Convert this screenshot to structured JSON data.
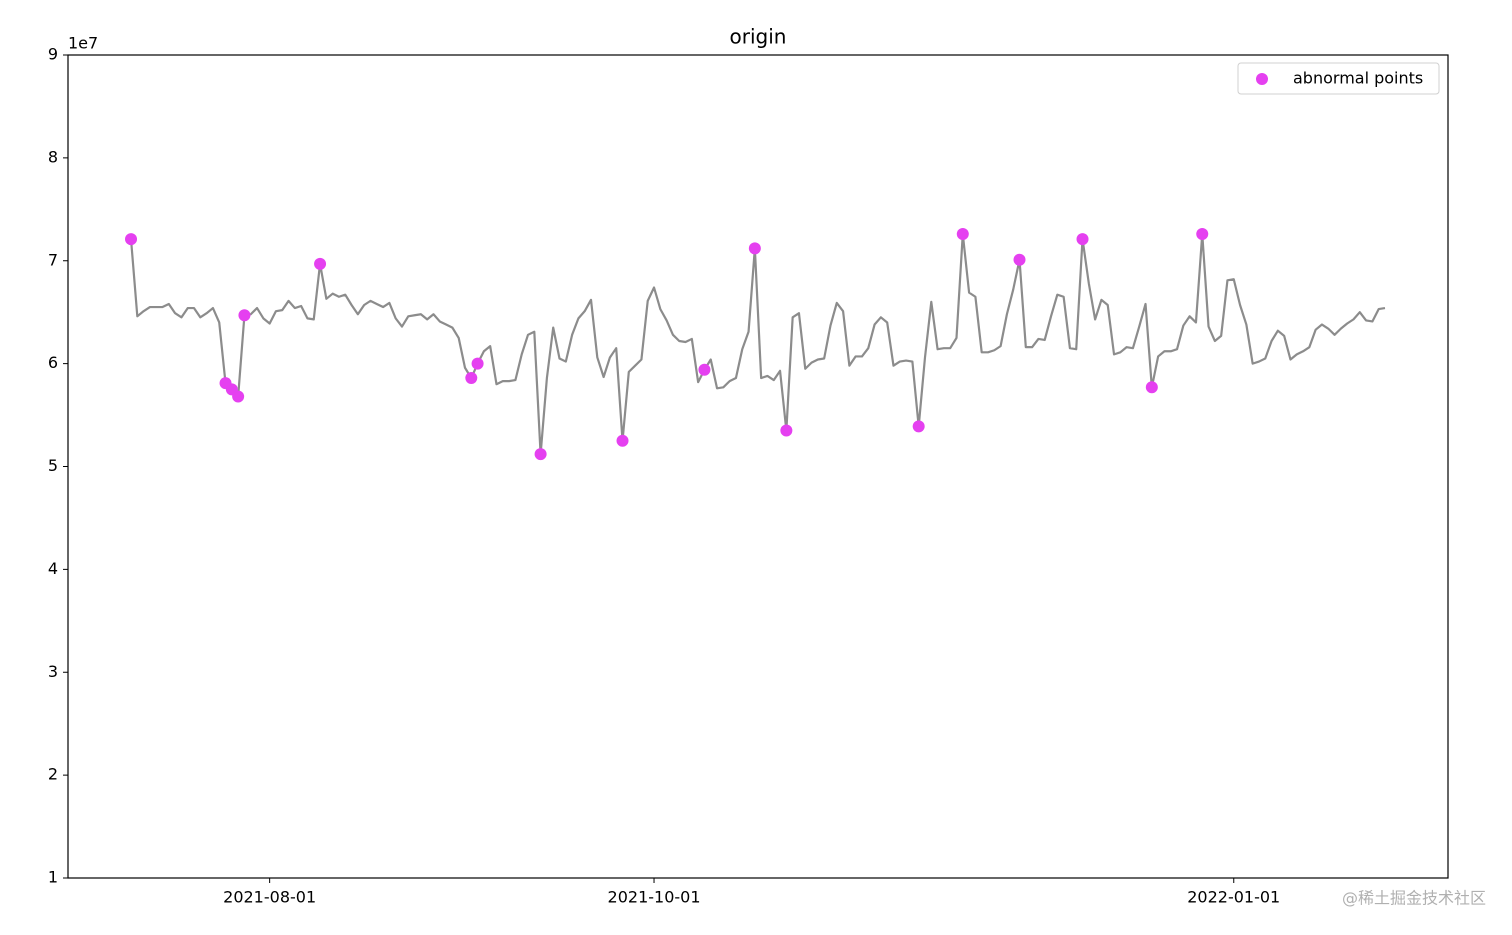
{
  "chart_data": {
    "type": "line",
    "title": "origin",
    "offset_text": "1e7",
    "watermark": "@稀土掘金技术社区",
    "xlim": [
      "2021-06-30",
      "2022-02-04"
    ],
    "xticks": [
      "2021-08-01",
      "2021-10-01",
      "2022-01-01"
    ],
    "ylim": [
      1,
      9
    ],
    "yticks": [
      1,
      2,
      3,
      4,
      5,
      6,
      7,
      8,
      9
    ],
    "legend": "upper right",
    "series": [
      {
        "type": "line",
        "color": "#8c8c8c",
        "x": [
          "2021-07-10",
          "2021-07-11",
          "2021-07-12",
          "2021-07-13",
          "2021-07-14",
          "2021-07-15",
          "2021-07-16",
          "2021-07-17",
          "2021-07-18",
          "2021-07-19",
          "2021-07-20",
          "2021-07-21",
          "2021-07-22",
          "2021-07-23",
          "2021-07-24",
          "2021-07-25",
          "2021-07-26",
          "2021-07-27",
          "2021-07-28",
          "2021-07-29",
          "2021-07-30",
          "2021-07-31",
          "2021-08-01",
          "2021-08-02",
          "2021-08-03",
          "2021-08-04",
          "2021-08-05",
          "2021-08-06",
          "2021-08-07",
          "2021-08-08",
          "2021-08-09",
          "2021-08-10",
          "2021-08-11",
          "2021-08-12",
          "2021-08-13",
          "2021-08-14",
          "2021-08-15",
          "2021-08-16",
          "2021-08-17",
          "2021-08-18",
          "2021-08-19",
          "2021-08-20",
          "2021-08-21",
          "2021-08-22",
          "2021-08-23",
          "2021-08-24",
          "2021-08-25",
          "2021-08-26",
          "2021-08-27",
          "2021-08-28",
          "2021-08-29",
          "2021-08-30",
          "2021-08-31",
          "2021-09-01",
          "2021-09-02",
          "2021-09-03",
          "2021-09-04",
          "2021-09-05",
          "2021-09-06",
          "2021-09-07",
          "2021-09-08",
          "2021-09-09",
          "2021-09-10",
          "2021-09-11",
          "2021-09-12",
          "2021-09-13",
          "2021-09-14",
          "2021-09-15",
          "2021-09-16",
          "2021-09-17",
          "2021-09-18",
          "2021-09-19",
          "2021-09-20",
          "2021-09-21",
          "2021-09-22",
          "2021-09-23",
          "2021-09-24",
          "2021-09-25",
          "2021-09-26",
          "2021-09-27",
          "2021-09-28",
          "2021-09-29",
          "2021-09-30",
          "2021-10-01",
          "2021-10-02",
          "2021-10-03",
          "2021-10-04",
          "2021-10-05",
          "2021-10-06",
          "2021-10-07",
          "2021-10-08",
          "2021-10-09",
          "2021-10-10",
          "2021-10-11",
          "2021-10-12",
          "2021-10-13",
          "2021-10-14",
          "2021-10-15",
          "2021-10-16",
          "2021-10-17",
          "2021-10-18",
          "2021-10-19",
          "2021-10-20",
          "2021-10-21",
          "2021-10-22",
          "2021-10-23",
          "2021-10-24",
          "2021-10-25",
          "2021-10-26",
          "2021-10-27",
          "2021-10-28",
          "2021-10-29",
          "2021-10-30",
          "2021-10-31",
          "2021-11-01",
          "2021-11-02",
          "2021-11-03",
          "2021-11-04",
          "2021-11-05",
          "2021-11-06",
          "2021-11-07",
          "2021-11-08",
          "2021-11-09",
          "2021-11-10",
          "2021-11-11",
          "2021-11-12",
          "2021-11-13",
          "2021-11-14",
          "2021-11-15",
          "2021-11-16",
          "2021-11-17",
          "2021-11-18",
          "2021-11-19",
          "2021-11-20",
          "2021-11-21",
          "2021-11-22",
          "2021-11-23",
          "2021-11-24",
          "2021-11-25",
          "2021-11-26",
          "2021-11-27",
          "2021-11-28",
          "2021-11-29",
          "2021-11-30",
          "2021-12-01",
          "2021-12-02",
          "2021-12-03",
          "2021-12-04",
          "2021-12-05",
          "2021-12-06",
          "2021-12-07",
          "2021-12-08",
          "2021-12-09",
          "2021-12-10",
          "2021-12-11",
          "2021-12-12",
          "2021-12-13",
          "2021-12-14",
          "2021-12-15",
          "2021-12-16",
          "2021-12-17",
          "2021-12-18",
          "2021-12-19",
          "2021-12-20",
          "2021-12-21",
          "2021-12-22",
          "2021-12-23",
          "2021-12-24",
          "2021-12-25",
          "2021-12-26",
          "2021-12-27",
          "2021-12-28",
          "2021-12-29",
          "2021-12-30",
          "2021-12-31",
          "2022-01-01",
          "2022-01-02",
          "2022-01-03",
          "2022-01-04",
          "2022-01-05",
          "2022-01-06",
          "2022-01-07",
          "2022-01-08",
          "2022-01-09",
          "2022-01-10",
          "2022-01-11",
          "2022-01-12",
          "2022-01-13",
          "2022-01-14",
          "2022-01-15",
          "2022-01-16",
          "2022-01-17",
          "2022-01-18",
          "2022-01-19",
          "2022-01-20",
          "2022-01-21",
          "2022-01-22",
          "2022-01-23",
          "2022-01-24",
          "2022-01-25"
        ],
        "values": [
          7.21,
          6.46,
          6.51,
          6.55,
          6.55,
          6.55,
          6.58,
          6.49,
          6.45,
          6.54,
          6.54,
          6.45,
          6.49,
          6.54,
          6.4,
          5.81,
          5.75,
          5.68,
          6.47,
          6.48,
          6.54,
          6.44,
          6.39,
          6.51,
          6.52,
          6.61,
          6.54,
          6.56,
          6.44,
          6.43,
          6.97,
          6.63,
          6.68,
          6.65,
          6.67,
          6.57,
          6.48,
          6.57,
          6.61,
          6.58,
          6.55,
          6.59,
          6.44,
          6.36,
          6.46,
          6.47,
          6.48,
          6.43,
          6.48,
          6.41,
          6.38,
          6.35,
          6.25,
          5.96,
          5.86,
          6.0,
          6.12,
          6.17,
          5.8,
          5.83,
          5.83,
          5.84,
          6.09,
          6.28,
          6.31,
          5.12,
          5.86,
          6.35,
          6.05,
          6.02,
          6.28,
          6.44,
          6.51,
          6.62,
          6.06,
          5.87,
          6.06,
          6.15,
          5.25,
          5.92,
          5.98,
          6.04,
          6.61,
          6.74,
          6.53,
          6.42,
          6.28,
          6.22,
          6.21,
          6.24,
          5.82,
          5.94,
          6.04,
          5.76,
          5.77,
          5.83,
          5.86,
          6.14,
          6.31,
          7.12,
          5.86,
          5.88,
          5.84,
          5.93,
          5.35,
          6.45,
          6.49,
          5.95,
          6.01,
          6.04,
          6.05,
          6.37,
          6.59,
          6.51,
          5.98,
          6.07,
          6.07,
          6.15,
          6.38,
          6.45,
          6.4,
          5.98,
          6.02,
          6.03,
          6.02,
          5.39,
          6.06,
          6.6,
          6.14,
          6.15,
          6.15,
          6.25,
          7.26,
          6.69,
          6.65,
          6.11,
          6.11,
          6.13,
          6.17,
          6.48,
          6.72,
          7.01,
          6.16,
          6.16,
          6.24,
          6.23,
          6.46,
          6.67,
          6.65,
          6.15,
          6.14,
          7.21,
          6.78,
          6.43,
          6.62,
          6.57,
          6.09,
          6.11,
          6.16,
          6.15,
          6.36,
          6.58,
          5.77,
          6.07,
          6.12,
          6.12,
          6.14,
          6.37,
          6.46,
          6.4,
          7.26,
          6.36,
          6.22,
          6.27,
          6.81,
          6.82,
          6.57,
          6.38,
          6.0,
          6.02,
          6.05,
          6.22,
          6.32,
          6.27,
          6.04,
          6.09,
          6.12,
          6.16,
          6.33,
          6.38,
          6.34,
          6.28,
          6.34,
          6.39,
          6.43,
          6.5,
          6.42,
          6.41,
          6.53,
          6.54
        ]
      },
      {
        "type": "scatter",
        "name": "abnormal points",
        "color": "#e540f0",
        "x": [
          "2021-07-10",
          "2021-07-25",
          "2021-07-26",
          "2021-07-27",
          "2021-07-28",
          "2021-08-09",
          "2021-09-02",
          "2021-09-03",
          "2021-09-13",
          "2021-09-26",
          "2021-10-09",
          "2021-10-17",
          "2021-10-22",
          "2021-11-12",
          "2021-11-19",
          "2021-11-28",
          "2021-12-08",
          "2021-12-19",
          "2021-12-27"
        ],
        "values": [
          7.21,
          5.81,
          5.75,
          5.68,
          6.47,
          6.97,
          5.86,
          6.0,
          5.12,
          5.25,
          5.94,
          7.12,
          5.35,
          5.39,
          7.26,
          7.01,
          7.21,
          5.77,
          7.26
        ]
      }
    ]
  }
}
